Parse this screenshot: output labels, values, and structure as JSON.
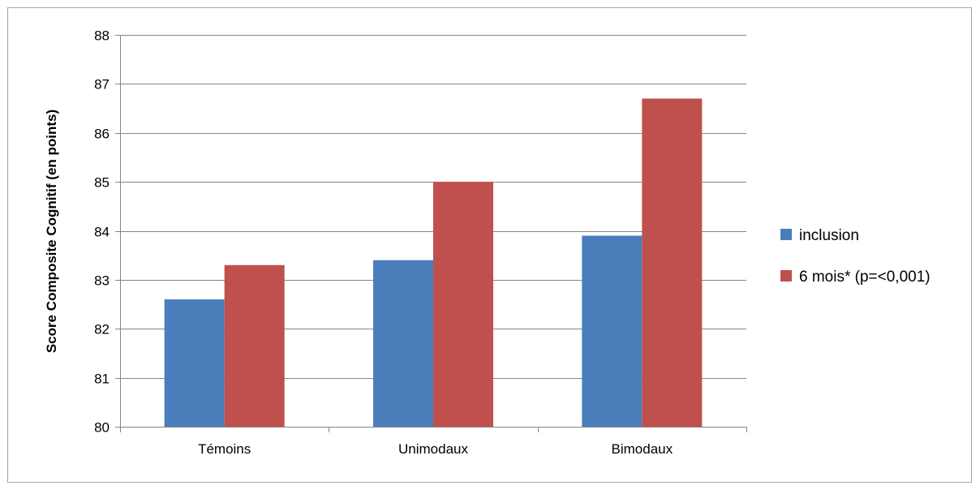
{
  "chart_data": {
    "type": "bar",
    "categories": [
      "Témoins",
      "Unimodaux",
      "Bimodaux"
    ],
    "series": [
      {
        "name": "inclusion",
        "values": [
          82.6,
          83.4,
          83.9
        ],
        "color": "#4a7ebb"
      },
      {
        "name": "6 mois* (p=<0,001)",
        "values": [
          83.3,
          85.0,
          86.7
        ],
        "color": "#c0504d"
      }
    ],
    "title": "",
    "xlabel": "",
    "ylabel": "Score Composite Cognitif (en points)",
    "ylim": [
      80,
      88
    ],
    "yticks": [
      80,
      81,
      82,
      83,
      84,
      85,
      86,
      87,
      88
    ],
    "grid": true,
    "legend_position": "right"
  }
}
